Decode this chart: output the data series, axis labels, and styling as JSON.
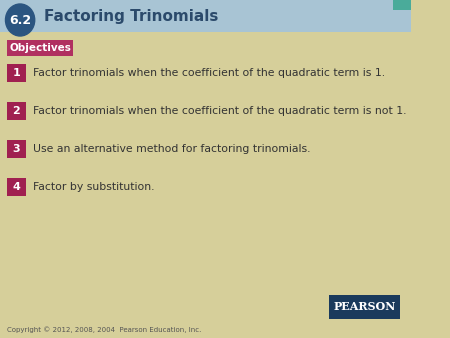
{
  "title": "Factoring Trinomials",
  "section_number": "6.2",
  "background_color": "#d6cf9a",
  "header_bg_color": "#a8c4d4",
  "header_text_color": "#2b4a6b",
  "teal_corner_color": "#4aab9a",
  "section_circle_color": "#2b5580",
  "section_num_color": "#ffffff",
  "objectives_bg": "#b03060",
  "objectives_text_color": "#ffffff",
  "objectives_label": "Objectives",
  "num_badge_color": "#a02050",
  "num_text_color": "#ffffff",
  "item_text_color": "#333333",
  "pearson_bg": "#1a3a5c",
  "pearson_text": "PEARSON",
  "copyright_text": "Copyright © 2012, 2008, 2004  Pearson Education, Inc.",
  "items": [
    {
      "num": "1",
      "text": "Factor trinomials when the coefficient of the quadratic term is 1."
    },
    {
      "num": "2",
      "text": "Factor trinomials when the coefficient of the quadratic term is not 1."
    },
    {
      "num": "3",
      "text": "Use an alternative method for factoring trinomials."
    },
    {
      "num": "4",
      "text": "Factor by substitution."
    }
  ]
}
